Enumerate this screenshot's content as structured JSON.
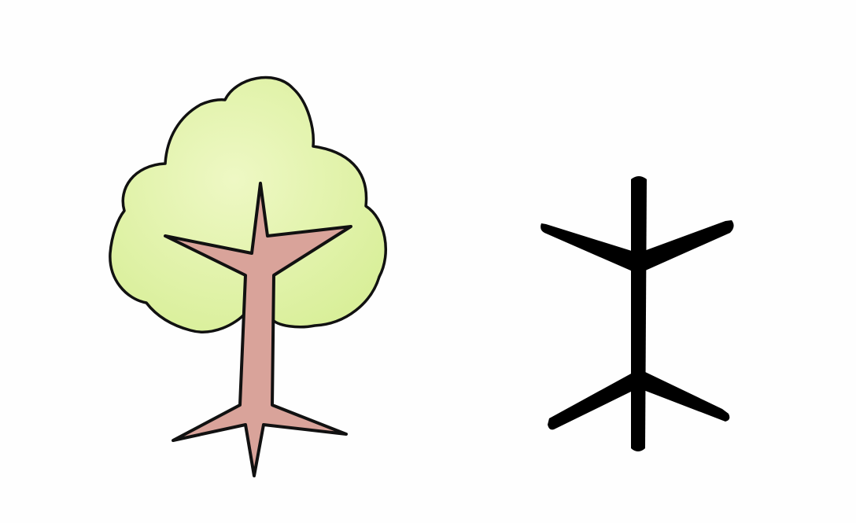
{
  "drawings": [
    {
      "id": "tree",
      "icon": "tree-icon",
      "foliage_color": "#d9ef9a",
      "foliage_highlight": "#eef8c4",
      "trunk_color": "#d9a39a",
      "outline_color": "#111111"
    },
    {
      "id": "character",
      "icon": "tree-glyph-icon",
      "stroke_color": "#000000"
    }
  ]
}
